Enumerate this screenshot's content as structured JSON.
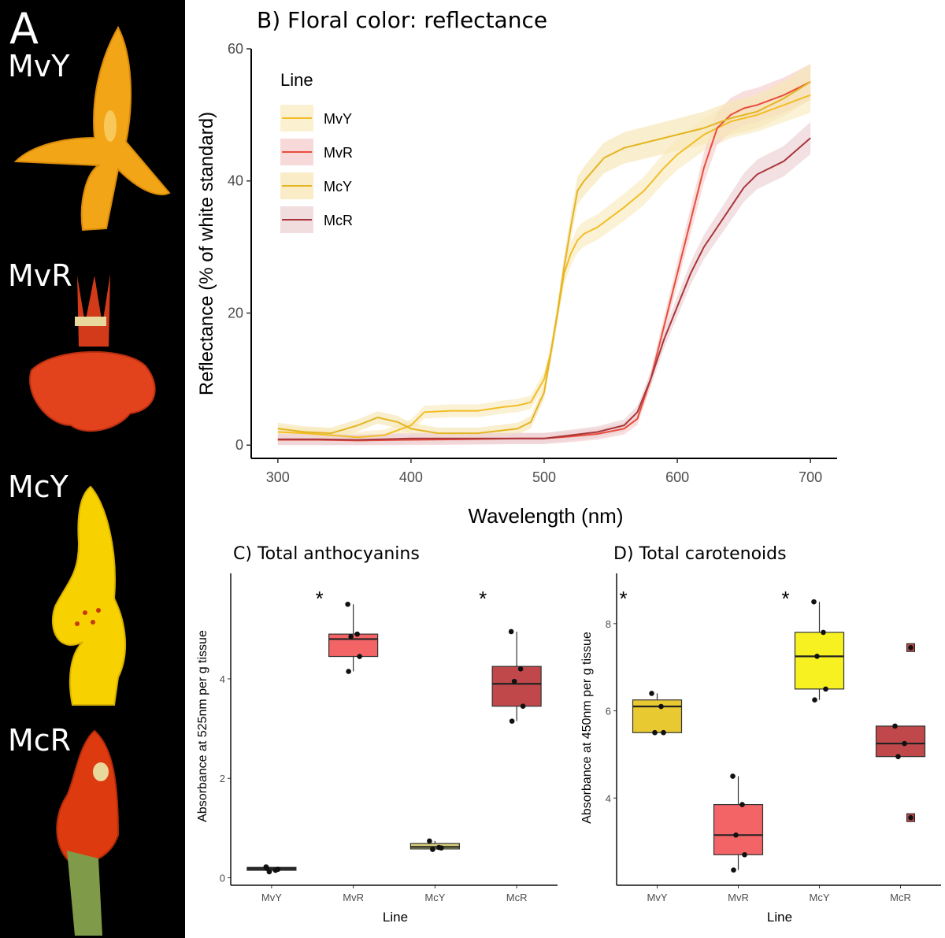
{
  "panel_a": {
    "letter": "A",
    "labels": [
      "MvY",
      "MvR",
      "McY",
      "McR"
    ],
    "petal_colors": [
      "#f2a516",
      "#e2431c",
      "#f7d100",
      "#dd3a10"
    ],
    "background": "#000000"
  },
  "chart_data": [
    {
      "type": "line",
      "title": "B) Floral color: reflectance",
      "xlabel": "Wavelength (nm)",
      "ylabel": "Reflectance (% of white standard)",
      "xlim": [
        280,
        720
      ],
      "ylim": [
        -2,
        60
      ],
      "xticks": [
        300,
        400,
        500,
        600,
        700
      ],
      "yticks": [
        0,
        20,
        40,
        60
      ],
      "grid": false,
      "legend": {
        "title": "Line",
        "placement": "top-left"
      },
      "series": [
        {
          "name": "MvY",
          "color": "#f2bd26",
          "ribbon": "#faedc4",
          "x": [
            300,
            320,
            340,
            360,
            380,
            400,
            410,
            430,
            450,
            470,
            480,
            490,
            500,
            505,
            510,
            515,
            520,
            525,
            530,
            540,
            550,
            560,
            575,
            590,
            600,
            620,
            640,
            660,
            680,
            700
          ],
          "y": [
            2,
            1.8,
            1.5,
            1.2,
            1.5,
            3,
            5,
            5.2,
            5.2,
            5.8,
            6,
            6.5,
            10,
            14,
            20,
            26,
            29,
            31,
            32,
            33,
            34.5,
            36,
            38.5,
            42,
            44,
            47,
            49,
            50,
            51.5,
            53
          ]
        },
        {
          "name": "MvR",
          "color": "#e84d3c",
          "ribbon": "#f6d0d0",
          "x": [
            300,
            330,
            360,
            400,
            440,
            480,
            500,
            520,
            540,
            560,
            570,
            580,
            590,
            600,
            610,
            620,
            630,
            640,
            650,
            660,
            680,
            700
          ],
          "y": [
            0.8,
            0.8,
            0.7,
            0.8,
            0.9,
            1,
            1,
            1.3,
            1.7,
            2.5,
            4,
            10,
            18,
            26,
            34,
            42,
            48,
            50,
            51,
            51.5,
            53,
            55
          ]
        },
        {
          "name": "McY",
          "color": "#e3b522",
          "ribbon": "#f7e7b8",
          "x": [
            300,
            320,
            340,
            360,
            375,
            390,
            400,
            420,
            450,
            480,
            490,
            500,
            505,
            510,
            515,
            520,
            525,
            530,
            545,
            560,
            580,
            600,
            620,
            640,
            660,
            680,
            700
          ],
          "y": [
            2.5,
            2,
            1.8,
            3,
            4.2,
            3.5,
            2.5,
            1.8,
            1.8,
            2.5,
            3.5,
            8,
            14,
            20,
            27,
            33,
            38.5,
            40,
            43.5,
            45,
            46,
            47,
            48,
            49.5,
            50.5,
            52.5,
            55
          ]
        },
        {
          "name": "McR",
          "color": "#a9363b",
          "ribbon": "#edd3d6",
          "x": [
            300,
            330,
            360,
            400,
            440,
            480,
            500,
            520,
            540,
            560,
            570,
            580,
            590,
            600,
            610,
            620,
            630,
            640,
            650,
            660,
            680,
            700
          ],
          "y": [
            0.9,
            0.9,
            0.8,
            1,
            1,
            1,
            1,
            1.5,
            2,
            3,
            5,
            10,
            16,
            21,
            26,
            30,
            33,
            36,
            39,
            41,
            43,
            46.5
          ]
        }
      ]
    },
    {
      "type": "box",
      "title": "C) Total anthocyanins",
      "xlabel": "Line",
      "ylabel": "Absorbance at 525nm per g tissue",
      "ylim": [
        -0.15,
        5.9
      ],
      "yticks": [
        0,
        2,
        4
      ],
      "categories": [
        "MvY",
        "MvR",
        "McY",
        "McR"
      ],
      "colors": [
        "#4d4d4d",
        "#f26466",
        "#d6d07a",
        "#c0484b"
      ],
      "significance": [
        "",
        "*",
        "",
        "*"
      ],
      "boxes": [
        {
          "min": 0.12,
          "q1": 0.15,
          "median": 0.18,
          "q3": 0.21,
          "max": 0.22,
          "points": [
            0.22,
            0.15,
            0.12,
            0.17,
            0.19
          ]
        },
        {
          "min": 4.15,
          "q1": 4.45,
          "median": 4.8,
          "q3": 4.9,
          "max": 5.5,
          "points": [
            5.5,
            4.9,
            4.85,
            4.45,
            4.15
          ]
        },
        {
          "min": 0.57,
          "q1": 0.58,
          "median": 0.62,
          "q3": 0.69,
          "max": 0.74,
          "points": [
            0.74,
            0.61,
            0.57,
            0.6
          ]
        },
        {
          "min": 3.15,
          "q1": 3.45,
          "median": 3.9,
          "q3": 4.25,
          "max": 4.95,
          "points": [
            4.95,
            4.2,
            3.95,
            3.45,
            3.15
          ]
        }
      ]
    },
    {
      "type": "box",
      "title": "D) Total carotenoids",
      "xlabel": "Line",
      "ylabel": "Absorbance at 450nm per g tissue",
      "ylim": [
        2.0,
        8.9
      ],
      "yticks": [
        4,
        6,
        8
      ],
      "categories": [
        "MvY",
        "MvR",
        "McY",
        "McR"
      ],
      "colors": [
        "#e8c931",
        "#f26466",
        "#f7f122",
        "#c0484b"
      ],
      "significance": [
        "*",
        "",
        "*",
        ""
      ],
      "boxes": [
        {
          "min": 5.5,
          "q1": 5.5,
          "median": 6.1,
          "q3": 6.25,
          "max": 6.4,
          "points": [
            6.4,
            6.1,
            5.5,
            5.5
          ]
        },
        {
          "min": 2.35,
          "q1": 2.7,
          "median": 3.15,
          "q3": 3.85,
          "max": 4.5,
          "points": [
            4.5,
            3.85,
            3.15,
            2.7,
            2.35
          ]
        },
        {
          "min": 6.25,
          "q1": 6.5,
          "median": 7.25,
          "q3": 7.8,
          "max": 8.5,
          "points": [
            8.5,
            7.8,
            7.25,
            6.5,
            6.25
          ]
        },
        {
          "min": 4.95,
          "q1": 4.95,
          "median": 5.25,
          "q3": 5.65,
          "max": 5.65,
          "outliers": [
            7.45,
            3.55
          ],
          "points": [
            5.65,
            5.25,
            4.95
          ]
        }
      ]
    }
  ]
}
